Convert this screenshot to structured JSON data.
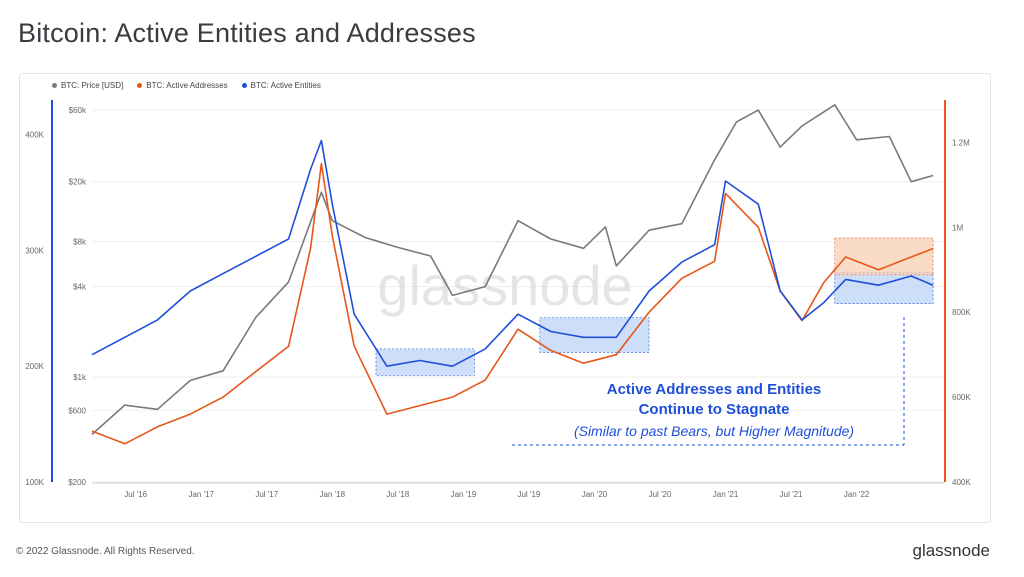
{
  "title": "Bitcoin: Active Entities and Addresses",
  "footer": "© 2022 Glassnode. All Rights Reserved.",
  "brand": "glassnode",
  "watermark": "glassnode",
  "colors": {
    "price": "#7a7a7a",
    "addresses": "#e8561a",
    "entities": "#1f4fd8",
    "highlight_blue": "#bcd3f5",
    "highlight_orange": "#f8d2b8"
  },
  "chart_data": {
    "type": "line",
    "title": "Bitcoin: Active Entities and Addresses",
    "legend_position": "top-left",
    "x_ticks": [
      "Jul '16",
      "Jan '17",
      "Jul '17",
      "Jan '18",
      "Jul '18",
      "Jan '19",
      "Jul '19",
      "Jan '20",
      "Jul '20",
      "Jan '21",
      "Jul '21",
      "Jan '22"
    ],
    "x_range": [
      "2016-03",
      "2022-09"
    ],
    "y_left_entities": {
      "ticks": [
        "100K",
        "200K",
        "300K",
        "400K"
      ],
      "range": [
        100000,
        430000
      ]
    },
    "y_left_price": {
      "ticks": [
        "$200",
        "$600",
        "$1k",
        "$4k",
        "$8k",
        "$20k",
        "$60k"
      ],
      "scale": "log",
      "range": [
        200,
        70000
      ]
    },
    "y_right_addresses": {
      "ticks": [
        "400K",
        "600K",
        "800K",
        "1M",
        "1.2M"
      ],
      "range": [
        400000,
        1300000
      ]
    },
    "series": [
      {
        "name": "BTC: Price [USD]",
        "axis": "price",
        "color": "#7a7a7a",
        "points": [
          [
            "2016-03",
            415
          ],
          [
            "2016-06",
            650
          ],
          [
            "2016-09",
            610
          ],
          [
            "2016-12",
            950
          ],
          [
            "2017-03",
            1100
          ],
          [
            "2017-06",
            2500
          ],
          [
            "2017-09",
            4300
          ],
          [
            "2017-12",
            17000
          ],
          [
            "2018-01",
            11000
          ],
          [
            "2018-04",
            8500
          ],
          [
            "2018-07",
            7300
          ],
          [
            "2018-10",
            6400
          ],
          [
            "2018-12",
            3500
          ],
          [
            "2019-03",
            4000
          ],
          [
            "2019-06",
            11000
          ],
          [
            "2019-09",
            8300
          ],
          [
            "2019-12",
            7200
          ],
          [
            "2020-02",
            10000
          ],
          [
            "2020-03",
            5500
          ],
          [
            "2020-06",
            9500
          ],
          [
            "2020-09",
            10500
          ],
          [
            "2020-12",
            28000
          ],
          [
            "2021-02",
            50000
          ],
          [
            "2021-04",
            60000
          ],
          [
            "2021-06",
            34000
          ],
          [
            "2021-08",
            47000
          ],
          [
            "2021-11",
            65000
          ],
          [
            "2022-01",
            38000
          ],
          [
            "2022-04",
            40000
          ],
          [
            "2022-06",
            20000
          ],
          [
            "2022-08",
            22000
          ]
        ]
      },
      {
        "name": "BTC: Active Addresses",
        "axis": "addresses",
        "color": "#e8561a",
        "points": [
          [
            "2016-03",
            520
          ],
          [
            "2016-06",
            490
          ],
          [
            "2016-09",
            530
          ],
          [
            "2016-12",
            560
          ],
          [
            "2017-03",
            600
          ],
          [
            "2017-06",
            660
          ],
          [
            "2017-09",
            720
          ],
          [
            "2017-11",
            950
          ],
          [
            "2017-12",
            1150
          ],
          [
            "2018-01",
            980
          ],
          [
            "2018-03",
            720
          ],
          [
            "2018-06",
            560
          ],
          [
            "2018-09",
            580
          ],
          [
            "2018-12",
            600
          ],
          [
            "2019-03",
            640
          ],
          [
            "2019-06",
            760
          ],
          [
            "2019-09",
            710
          ],
          [
            "2019-12",
            680
          ],
          [
            "2020-03",
            700
          ],
          [
            "2020-06",
            800
          ],
          [
            "2020-09",
            880
          ],
          [
            "2020-12",
            920
          ],
          [
            "2021-01",
            1080
          ],
          [
            "2021-04",
            1000
          ],
          [
            "2021-06",
            850
          ],
          [
            "2021-08",
            780
          ],
          [
            "2021-10",
            870
          ],
          [
            "2021-12",
            930
          ],
          [
            "2022-03",
            900
          ],
          [
            "2022-06",
            930
          ],
          [
            "2022-08",
            950
          ]
        ]
      },
      {
        "name": "BTC: Active Entities",
        "axis": "entities",
        "color": "#1f4fd8",
        "points": [
          [
            "2016-03",
            210
          ],
          [
            "2016-06",
            225
          ],
          [
            "2016-09",
            240
          ],
          [
            "2016-12",
            265
          ],
          [
            "2017-03",
            280
          ],
          [
            "2017-06",
            295
          ],
          [
            "2017-09",
            310
          ],
          [
            "2017-11",
            370
          ],
          [
            "2017-12",
            395
          ],
          [
            "2018-01",
            340
          ],
          [
            "2018-03",
            245
          ],
          [
            "2018-06",
            200
          ],
          [
            "2018-09",
            205
          ],
          [
            "2018-12",
            200
          ],
          [
            "2019-03",
            215
          ],
          [
            "2019-06",
            245
          ],
          [
            "2019-09",
            230
          ],
          [
            "2019-12",
            225
          ],
          [
            "2020-03",
            225
          ],
          [
            "2020-06",
            265
          ],
          [
            "2020-09",
            290
          ],
          [
            "2020-12",
            305
          ],
          [
            "2021-01",
            360
          ],
          [
            "2021-04",
            340
          ],
          [
            "2021-06",
            265
          ],
          [
            "2021-08",
            240
          ],
          [
            "2021-10",
            255
          ],
          [
            "2021-12",
            275
          ],
          [
            "2022-03",
            270
          ],
          [
            "2022-06",
            278
          ],
          [
            "2022-08",
            270
          ]
        ]
      }
    ],
    "annotations": [
      {
        "text": "Active Addresses and Entities",
        "style": "bold"
      },
      {
        "text": "Continue to Stagnate",
        "style": "bold"
      },
      {
        "text": "(Similar to past Bears, but Higher Magnitude)",
        "style": "italic"
      }
    ]
  }
}
